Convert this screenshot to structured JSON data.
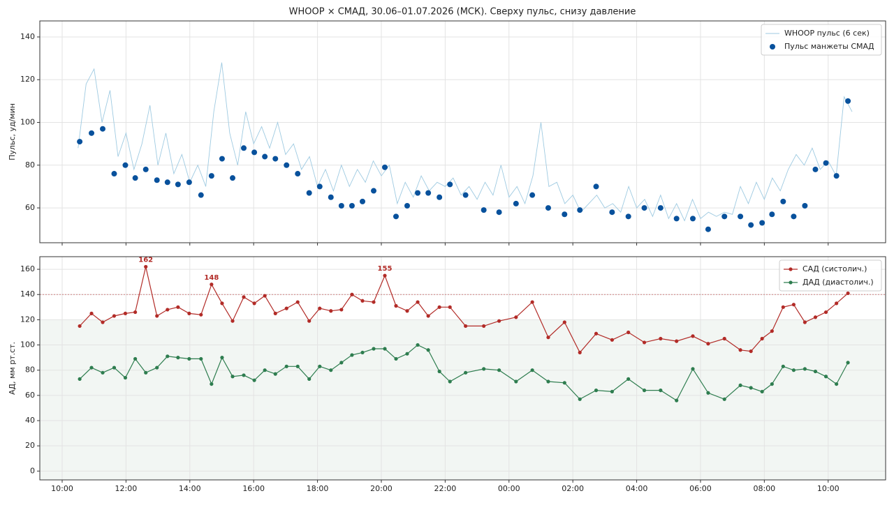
{
  "chart_data": [
    {
      "type": "line",
      "title": "WHOOP × СМАД, 30.06–01.07.2026 (МСК). Сверху пульс, снизу давление",
      "ylabel": "Пульс, уд/мин",
      "xlim": [
        9.3,
        35.8
      ],
      "ylim": [
        43.7,
        147.5
      ],
      "yticks": [
        60,
        80,
        100,
        120,
        140
      ],
      "xticks": [
        10,
        12,
        14,
        16,
        18,
        20,
        22,
        24,
        26,
        28,
        30,
        32,
        34
      ],
      "grid": true,
      "legend": "upper right",
      "x": [
        10.55,
        10.92,
        11.27,
        11.63,
        11.98,
        12.29,
        12.62,
        12.97,
        13.3,
        13.63,
        13.98,
        14.35,
        14.68,
        15.01,
        15.34,
        15.69,
        16.02,
        16.35,
        16.68,
        17.03,
        17.38,
        17.74,
        18.07,
        18.42,
        18.75,
        19.08,
        19.41,
        19.76,
        20.11,
        20.46,
        20.81,
        21.14,
        21.47,
        21.82,
        22.15,
        22.64,
        23.21,
        23.69,
        24.22,
        24.73,
        25.23,
        25.74,
        26.22,
        26.73,
        27.23,
        27.74,
        28.24,
        28.75,
        29.25,
        29.76,
        30.24,
        30.75,
        31.25,
        31.58,
        31.93,
        32.24,
        32.59,
        32.92,
        33.27,
        33.6,
        33.93,
        34.26,
        34.62
      ],
      "series": [
        {
          "name": "WHOOP пульс (6 сек)",
          "type": "line",
          "color": "#9ecae1",
          "x": [
            10.5,
            10.75,
            11,
            11.25,
            11.5,
            11.75,
            12,
            12.25,
            12.5,
            12.75,
            13,
            13.25,
            13.5,
            13.75,
            14,
            14.25,
            14.5,
            14.75,
            15,
            15.25,
            15.5,
            15.75,
            16,
            16.25,
            16.5,
            16.75,
            17,
            17.25,
            17.5,
            17.75,
            18,
            18.25,
            18.5,
            18.75,
            19,
            19.25,
            19.5,
            19.75,
            20,
            20.25,
            20.5,
            20.75,
            21,
            21.25,
            21.5,
            21.75,
            22,
            22.25,
            22.5,
            22.75,
            23,
            23.25,
            23.5,
            23.75,
            24,
            24.25,
            24.5,
            24.75,
            25,
            25.25,
            25.5,
            25.75,
            26,
            26.25,
            26.5,
            26.75,
            27,
            27.25,
            27.5,
            27.75,
            28,
            28.25,
            28.5,
            28.75,
            29,
            29.25,
            29.5,
            29.75,
            30,
            30.25,
            30.5,
            30.75,
            31,
            31.25,
            31.5,
            31.75,
            32,
            32.25,
            32.5,
            32.75,
            33,
            33.25,
            33.5,
            33.75,
            34,
            34.25,
            34.5,
            34.75
          ],
          "values": [
            88,
            118,
            125,
            100,
            115,
            84,
            95,
            78,
            90,
            108,
            80,
            95,
            76,
            85,
            72,
            80,
            70,
            105,
            128,
            95,
            80,
            105,
            90,
            98,
            88,
            100,
            85,
            90,
            78,
            84,
            70,
            78,
            68,
            80,
            70,
            78,
            72,
            82,
            75,
            80,
            62,
            72,
            65,
            75,
            68,
            72,
            70,
            74,
            66,
            70,
            64,
            72,
            66,
            80,
            65,
            70,
            62,
            75,
            100,
            70,
            72,
            62,
            66,
            58,
            62,
            66,
            60,
            62,
            58,
            70,
            60,
            64,
            56,
            66,
            55,
            62,
            54,
            64,
            55,
            58,
            56,
            58,
            57,
            70,
            62,
            72,
            64,
            74,
            68,
            78,
            85,
            80,
            88,
            78,
            82,
            75,
            112,
            105
          ]
        },
        {
          "name": "Пульс манжеты СМАД",
          "type": "scatter",
          "color": "#08519c",
          "values": [
            91,
            95,
            97,
            76,
            80,
            74,
            78,
            73,
            72,
            71,
            72,
            66,
            75,
            83,
            74,
            88,
            86,
            84,
            83,
            80,
            76,
            67,
            70,
            65,
            61,
            61,
            63,
            68,
            79,
            56,
            61,
            67,
            67,
            65,
            71,
            66,
            59,
            58,
            62,
            66,
            60,
            57,
            59,
            70,
            58,
            56,
            60,
            60,
            55,
            55,
            50,
            56,
            56,
            52,
            53,
            57,
            63,
            56,
            61,
            78,
            81,
            75,
            110
          ]
        }
      ]
    },
    {
      "type": "line",
      "ylabel": "АД, мм рт.ст.",
      "xlim": [
        9.3,
        35.8
      ],
      "ylim": [
        -7,
        170
      ],
      "yticks": [
        0,
        20,
        40,
        60,
        80,
        100,
        120,
        140,
        160
      ],
      "xticks": [
        {
          "value": 10,
          "label": "10:00"
        },
        {
          "value": 12,
          "label": "12:00"
        },
        {
          "value": 14,
          "label": "14:00"
        },
        {
          "value": 16,
          "label": "16:00"
        },
        {
          "value": 18,
          "label": "18:00"
        },
        {
          "value": 20,
          "label": "20:00"
        },
        {
          "value": 22,
          "label": "22:00"
        },
        {
          "value": 24,
          "label": "00:00"
        },
        {
          "value": 26,
          "label": "02:00"
        },
        {
          "value": 28,
          "label": "04:00"
        },
        {
          "value": 30,
          "label": "06:00"
        },
        {
          "value": 32,
          "label": "08:00"
        },
        {
          "value": 34,
          "label": "10:00"
        }
      ],
      "grid": true,
      "legend": "upper right",
      "reference_line": 140,
      "shade_below": 120,
      "value_label_min": 145,
      "x": [
        10.55,
        10.92,
        11.27,
        11.63,
        11.98,
        12.29,
        12.62,
        12.97,
        13.3,
        13.63,
        13.98,
        14.35,
        14.68,
        15.01,
        15.34,
        15.69,
        16.02,
        16.35,
        16.68,
        17.03,
        17.38,
        17.74,
        18.07,
        18.42,
        18.75,
        19.08,
        19.41,
        19.76,
        20.11,
        20.46,
        20.81,
        21.14,
        21.47,
        21.82,
        22.15,
        22.64,
        23.21,
        23.69,
        24.22,
        24.73,
        25.23,
        25.74,
        26.22,
        26.73,
        27.23,
        27.74,
        28.24,
        28.75,
        29.25,
        29.76,
        30.24,
        30.75,
        31.25,
        31.58,
        31.93,
        32.24,
        32.59,
        32.92,
        33.27,
        33.6,
        33.93,
        34.26,
        34.62
      ],
      "series": [
        {
          "name": "САД (систолич.)",
          "type": "line",
          "marker": true,
          "color": "#b22b27",
          "labeled": true,
          "values": [
            115,
            125,
            118,
            123,
            125,
            126,
            162,
            123,
            128,
            130,
            125,
            124,
            148,
            133,
            119,
            138,
            133,
            139,
            125,
            129,
            134,
            119,
            129,
            127,
            128,
            140,
            135,
            134,
            155,
            131,
            127,
            134,
            123,
            130,
            130,
            115,
            115,
            119,
            122,
            134,
            106,
            118,
            94,
            109,
            104,
            110,
            102,
            105,
            103,
            107,
            101,
            105,
            96,
            95,
            105,
            111,
            130,
            132,
            118,
            122,
            126,
            133,
            141
          ]
        },
        {
          "name": "ДАД (диастолич.)",
          "type": "line",
          "marker": true,
          "color": "#2e7d4f",
          "values": [
            73,
            82,
            78,
            82,
            74,
            89,
            78,
            82,
            91,
            90,
            89,
            89,
            69,
            90,
            75,
            76,
            72,
            80,
            77,
            83,
            83,
            73,
            83,
            80,
            86,
            92,
            94,
            97,
            97,
            89,
            93,
            100,
            96,
            79,
            71,
            78,
            81,
            80,
            71,
            80,
            71,
            70,
            57,
            64,
            63,
            73,
            64,
            64,
            56,
            81,
            62,
            57,
            68,
            66,
            63,
            69,
            83,
            80,
            81,
            79,
            75,
            69,
            86
          ]
        }
      ]
    }
  ]
}
